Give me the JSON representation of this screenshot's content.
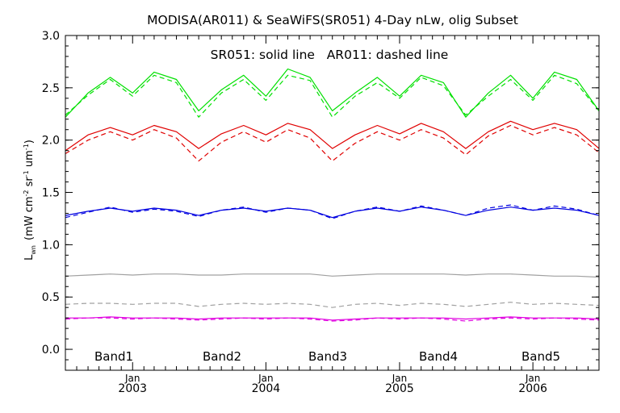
{
  "chart_data": {
    "type": "line",
    "title": "MODISA(AR011) & SeaWiFS(SR051) 4-Day nLw, olig Subset",
    "annotation": "SR051: solid line   AR011: dashed line",
    "ylabel": "L",
    "ylabel_sub": "wn",
    "ylabel_units_parts": [
      "(mW cm",
      "-2",
      " sr",
      "-1",
      " um",
      "-1",
      ")"
    ],
    "ylim": [
      -0.2,
      3.0
    ],
    "yticks": [
      0.0,
      0.5,
      1.0,
      1.5,
      2.0,
      2.5,
      3.0
    ],
    "ytick_labels": [
      "0.0",
      "0.5",
      "1.0",
      "1.5",
      "2.0",
      "2.5",
      "3.0"
    ],
    "xlim": [
      "2002-07-01",
      "2006-07-01"
    ],
    "xticks": [
      {
        "month": "Jan",
        "year": "2003",
        "date": "2003-01-01"
      },
      {
        "month": "Jan",
        "year": "2004",
        "date": "2004-01-01"
      },
      {
        "month": "Jan",
        "year": "2005",
        "date": "2005-01-01"
      },
      {
        "month": "Jan",
        "year": "2006",
        "date": "2006-01-01"
      }
    ],
    "grid": false,
    "legend": "bottom",
    "x": [
      "2002-07-01",
      "2002-09-01",
      "2002-11-01",
      "2003-01-01",
      "2003-03-01",
      "2003-05-01",
      "2003-07-01",
      "2003-09-01",
      "2003-11-01",
      "2004-01-01",
      "2004-03-01",
      "2004-05-01",
      "2004-07-01",
      "2004-09-01",
      "2004-11-01",
      "2005-01-01",
      "2005-03-01",
      "2005-05-01",
      "2005-07-01",
      "2005-09-01",
      "2005-11-01",
      "2006-01-01",
      "2006-03-01",
      "2006-05-01",
      "2006-07-01"
    ],
    "series": [
      {
        "name": "Band1",
        "color": "#00e000",
        "style": "solid",
        "values": [
          2.22,
          2.45,
          2.6,
          2.45,
          2.65,
          2.58,
          2.28,
          2.48,
          2.62,
          2.42,
          2.68,
          2.6,
          2.28,
          2.45,
          2.6,
          2.42,
          2.62,
          2.55,
          2.22,
          2.45,
          2.62,
          2.4,
          2.65,
          2.58,
          2.28
        ]
      },
      {
        "name": "Band1",
        "color": "#00e000",
        "style": "dashed",
        "values": [
          2.24,
          2.43,
          2.58,
          2.42,
          2.62,
          2.55,
          2.22,
          2.45,
          2.58,
          2.38,
          2.62,
          2.57,
          2.22,
          2.42,
          2.55,
          2.4,
          2.6,
          2.52,
          2.24,
          2.42,
          2.58,
          2.38,
          2.62,
          2.54,
          2.28
        ]
      },
      {
        "name": "Band2",
        "color": "#e00000",
        "style": "solid",
        "values": [
          1.9,
          2.05,
          2.12,
          2.05,
          2.14,
          2.08,
          1.92,
          2.06,
          2.14,
          2.05,
          2.16,
          2.1,
          1.92,
          2.05,
          2.14,
          2.06,
          2.16,
          2.08,
          1.92,
          2.08,
          2.18,
          2.1,
          2.16,
          2.1,
          1.92
        ]
      },
      {
        "name": "Band2",
        "color": "#e00000",
        "style": "dashed",
        "values": [
          1.87,
          2.0,
          2.08,
          2.0,
          2.1,
          2.02,
          1.8,
          1.98,
          2.08,
          1.98,
          2.1,
          2.02,
          1.8,
          1.97,
          2.08,
          2.0,
          2.1,
          2.02,
          1.86,
          2.04,
          2.14,
          2.05,
          2.12,
          2.05,
          1.88
        ]
      },
      {
        "name": "Band3",
        "color": "#0000e0",
        "style": "solid",
        "values": [
          1.28,
          1.32,
          1.35,
          1.32,
          1.35,
          1.33,
          1.28,
          1.33,
          1.35,
          1.32,
          1.35,
          1.33,
          1.26,
          1.32,
          1.35,
          1.32,
          1.36,
          1.33,
          1.28,
          1.33,
          1.36,
          1.33,
          1.35,
          1.33,
          1.28
        ]
      },
      {
        "name": "Band3",
        "color": "#0000e0",
        "style": "dashed",
        "values": [
          1.26,
          1.31,
          1.36,
          1.31,
          1.34,
          1.32,
          1.27,
          1.33,
          1.36,
          1.31,
          1.35,
          1.33,
          1.25,
          1.32,
          1.36,
          1.32,
          1.37,
          1.33,
          1.28,
          1.35,
          1.38,
          1.33,
          1.37,
          1.34,
          1.28
        ]
      },
      {
        "name": "Band4",
        "color": "#a0a0a0",
        "style": "solid",
        "values": [
          0.7,
          0.71,
          0.72,
          0.71,
          0.72,
          0.72,
          0.71,
          0.71,
          0.72,
          0.72,
          0.72,
          0.72,
          0.7,
          0.71,
          0.72,
          0.72,
          0.72,
          0.72,
          0.71,
          0.72,
          0.72,
          0.71,
          0.7,
          0.7,
          0.69
        ]
      },
      {
        "name": "Band4",
        "color": "#a0a0a0",
        "style": "dashed",
        "values": [
          0.43,
          0.44,
          0.44,
          0.43,
          0.44,
          0.44,
          0.41,
          0.43,
          0.44,
          0.43,
          0.44,
          0.43,
          0.4,
          0.43,
          0.44,
          0.42,
          0.44,
          0.43,
          0.41,
          0.43,
          0.45,
          0.43,
          0.44,
          0.43,
          0.42
        ]
      },
      {
        "name": "Band5",
        "color": "#e000e0",
        "style": "solid",
        "values": [
          0.3,
          0.3,
          0.31,
          0.3,
          0.3,
          0.3,
          0.29,
          0.3,
          0.3,
          0.3,
          0.3,
          0.3,
          0.28,
          0.29,
          0.3,
          0.3,
          0.3,
          0.3,
          0.29,
          0.3,
          0.31,
          0.3,
          0.3,
          0.3,
          0.29
        ]
      },
      {
        "name": "Band5",
        "color": "#e000e0",
        "style": "dashed",
        "values": [
          0.29,
          0.3,
          0.3,
          0.29,
          0.3,
          0.29,
          0.28,
          0.29,
          0.3,
          0.29,
          0.3,
          0.29,
          0.27,
          0.28,
          0.3,
          0.29,
          0.3,
          0.29,
          0.27,
          0.29,
          0.3,
          0.29,
          0.3,
          0.29,
          0.28
        ]
      }
    ],
    "legend_entries": [
      {
        "label": "Band1",
        "color": "#00e000"
      },
      {
        "label": "Band2",
        "color": "#e00000"
      },
      {
        "label": "Band3",
        "color": "#0000e0"
      },
      {
        "label": "Band4",
        "color": "#a0a0a0"
      },
      {
        "label": "Band5",
        "color": "#e000e0"
      }
    ]
  }
}
